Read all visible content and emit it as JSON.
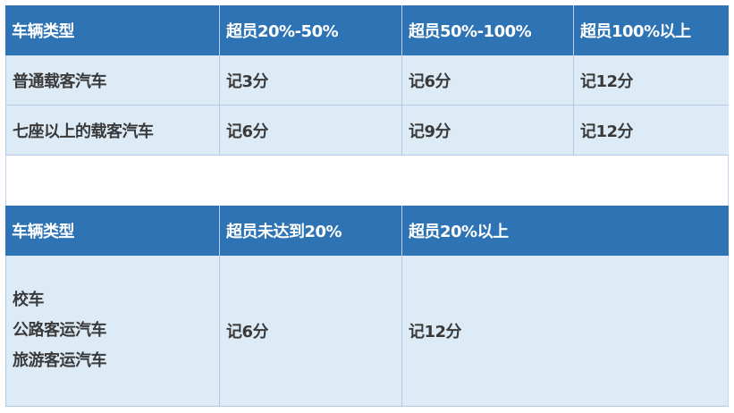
{
  "table1": {
    "headers": [
      "车辆类型",
      "超员20%-50%",
      "超员50%-100%",
      "超员100%以上"
    ],
    "rows": [
      [
        "普通载客汽车",
        "记3分",
        "记6分",
        "记12分"
      ],
      [
        "七座以上的载客汽车",
        "记6分",
        "记9分",
        "记12分"
      ]
    ]
  },
  "table2": {
    "headers": [
      "车辆类型",
      "超员未达到20%",
      "超员20%以上"
    ],
    "row": {
      "vehicle_types": [
        "校车",
        "公路客运汽车",
        "旅游客运汽车"
      ],
      "under_20": "记6分",
      "over_20": "记12分"
    }
  },
  "colors": {
    "header_bg": "#2e74b5",
    "body_bg": "#ddebf7",
    "border": "#b4c8e8"
  }
}
